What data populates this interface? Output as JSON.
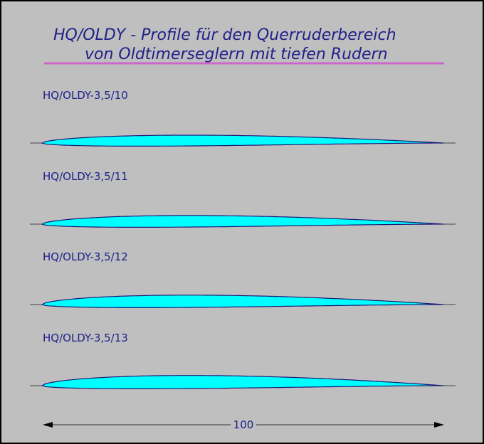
{
  "title": {
    "line1": "HQ/OLDY - Profile für den Querruderbereich",
    "line2": "von Oldtimerseglern mit tiefen Rudern"
  },
  "colors": {
    "background": "#bfbfbf",
    "title_text": "#20208a",
    "title_rule": "#cc66cc",
    "profile_fill": "#00ffff",
    "profile_outline": "#1a1a7a",
    "chord_line": "#444444"
  },
  "profiles": [
    {
      "label": "HQ/OLDY-3,5/10",
      "thickness_pct": 10
    },
    {
      "label": "HQ/OLDY-3,5/11",
      "thickness_pct": 11
    },
    {
      "label": "HQ/OLDY-3,5/12",
      "thickness_pct": 12
    },
    {
      "label": "HQ/OLDY-3,5/13",
      "thickness_pct": 13
    }
  ],
  "dimension": {
    "label": "100"
  }
}
